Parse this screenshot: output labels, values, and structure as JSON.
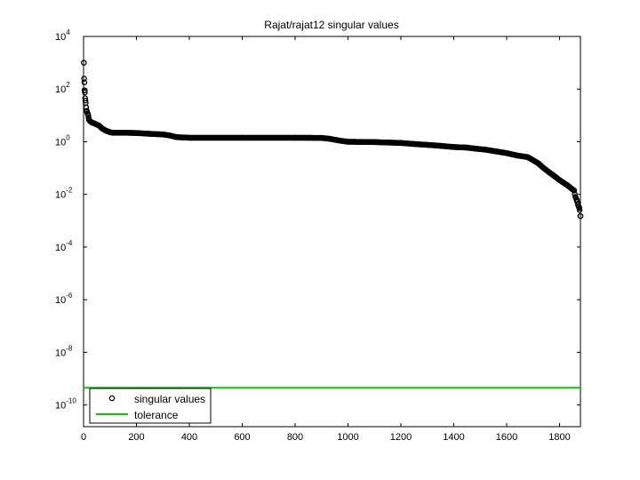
{
  "chart_data": {
    "type": "scatter",
    "title": "Rajat/rajat12 singular values",
    "xlabel": "",
    "ylabel": "",
    "xlim": [
      0,
      1879
    ],
    "ylim": [
      1.5e-11,
      10000
    ],
    "y_scale": "log",
    "grid": false,
    "legend_position": "bottom-left",
    "x_ticks": [
      0,
      200,
      400,
      600,
      800,
      1000,
      1200,
      1400,
      1600,
      1800
    ],
    "y_ticks": [
      {
        "value": 10000.0,
        "base": "10",
        "exp": "4"
      },
      {
        "value": 100.0,
        "base": "10",
        "exp": "2"
      },
      {
        "value": 1.0,
        "base": "10",
        "exp": "0"
      },
      {
        "value": 0.01,
        "base": "10",
        "exp": "-2"
      },
      {
        "value": 0.0001,
        "base": "10",
        "exp": "-4"
      },
      {
        "value": 1e-06,
        "base": "10",
        "exp": "-6"
      },
      {
        "value": 1e-08,
        "base": "10",
        "exp": "-8"
      },
      {
        "value": 1e-10,
        "base": "10",
        "exp": "-10"
      }
    ],
    "series": [
      {
        "name": "singular values",
        "marker": "circle",
        "color": "#000000",
        "points": [
          [
            1,
            1000
          ],
          [
            2,
            250
          ],
          [
            3,
            180
          ],
          [
            4,
            90
          ],
          [
            5,
            75
          ],
          [
            6,
            45
          ],
          [
            8,
            30
          ],
          [
            10,
            20
          ],
          [
            12,
            15
          ],
          [
            15,
            12
          ],
          [
            18,
            10
          ],
          [
            20,
            7
          ],
          [
            25,
            6
          ],
          [
            30,
            5.5
          ],
          [
            40,
            5
          ],
          [
            50,
            4.5
          ],
          [
            60,
            4
          ],
          [
            70,
            3.2
          ],
          [
            80,
            2.8
          ],
          [
            90,
            2.5
          ],
          [
            100,
            2.3
          ],
          [
            110,
            2.2
          ],
          [
            150,
            2.2
          ],
          [
            200,
            2.15
          ],
          [
            250,
            2.0
          ],
          [
            300,
            1.9
          ],
          [
            330,
            1.7
          ],
          [
            350,
            1.5
          ],
          [
            380,
            1.45
          ],
          [
            400,
            1.42
          ],
          [
            600,
            1.42
          ],
          [
            800,
            1.42
          ],
          [
            900,
            1.4
          ],
          [
            930,
            1.3
          ],
          [
            970,
            1.1
          ],
          [
            1000,
            1.0
          ],
          [
            1100,
            0.97
          ],
          [
            1200,
            0.9
          ],
          [
            1250,
            0.82
          ],
          [
            1300,
            0.76
          ],
          [
            1350,
            0.7
          ],
          [
            1400,
            0.63
          ],
          [
            1450,
            0.6
          ],
          [
            1480,
            0.55
          ],
          [
            1520,
            0.5
          ],
          [
            1560,
            0.43
          ],
          [
            1600,
            0.37
          ],
          [
            1640,
            0.3
          ],
          [
            1680,
            0.26
          ],
          [
            1700,
            0.2
          ],
          [
            1720,
            0.15
          ],
          [
            1740,
            0.1
          ],
          [
            1760,
            0.07
          ],
          [
            1780,
            0.05
          ],
          [
            1800,
            0.035
          ],
          [
            1830,
            0.022
          ],
          [
            1855,
            0.014
          ],
          [
            1860,
            0.008
          ],
          [
            1865,
            0.006
          ],
          [
            1870,
            0.004
          ],
          [
            1875,
            0.003
          ],
          [
            1879,
            0.0015
          ]
        ]
      },
      {
        "name": "tolerance",
        "line": true,
        "color": "#00cc00",
        "value": 4.5e-10
      }
    ]
  }
}
